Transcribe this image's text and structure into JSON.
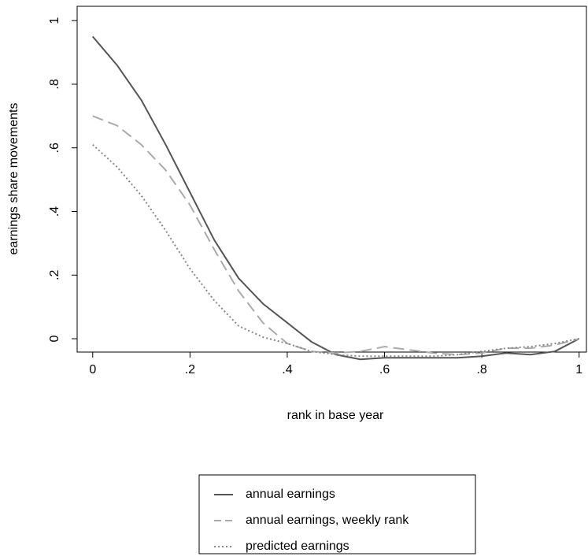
{
  "chart_data": {
    "type": "line",
    "xlabel": "rank in base year",
    "ylabel": "earnings share movements",
    "x": [
      0,
      0.05,
      0.1,
      0.15,
      0.2,
      0.25,
      0.3,
      0.35,
      0.4,
      0.45,
      0.5,
      0.55,
      0.6,
      0.65,
      0.7,
      0.75,
      0.8,
      0.85,
      0.9,
      0.95,
      1
    ],
    "series": [
      {
        "name": "annual earnings",
        "color": "#555555",
        "dash": "solid",
        "values": [
          0.95,
          0.86,
          0.75,
          0.61,
          0.46,
          0.31,
          0.19,
          0.11,
          0.05,
          -0.01,
          -0.05,
          -0.065,
          -0.06,
          -0.06,
          -0.06,
          -0.06,
          -0.055,
          -0.045,
          -0.05,
          -0.04,
          0
        ]
      },
      {
        "name": "annual earnings, weekly rank",
        "color": "#aaaaaa",
        "dash": "dash",
        "values": [
          0.7,
          0.67,
          0.61,
          0.53,
          0.42,
          0.28,
          0.15,
          0.05,
          -0.015,
          -0.04,
          -0.045,
          -0.04,
          -0.025,
          -0.035,
          -0.045,
          -0.05,
          -0.045,
          -0.03,
          -0.03,
          -0.02,
          0
        ]
      },
      {
        "name": "predicted earnings",
        "color": "#888888",
        "dash": "dot",
        "values": [
          0.61,
          0.54,
          0.45,
          0.34,
          0.22,
          0.12,
          0.04,
          0.005,
          -0.015,
          -0.04,
          -0.05,
          -0.055,
          -0.055,
          -0.055,
          -0.055,
          -0.05,
          -0.04,
          -0.03,
          -0.025,
          -0.015,
          0
        ]
      }
    ],
    "xlim": [
      -0.032,
      1.015
    ],
    "ylim": [
      -0.042,
      1.045
    ],
    "xticks": [
      0,
      {
        "value": 0.2,
        "label": ".2"
      },
      {
        "value": 0.4,
        "label": ".4"
      },
      {
        "value": 0.6,
        "label": ".6"
      },
      {
        "value": 0.8,
        "label": ".8"
      },
      1
    ],
    "yticks": [
      0,
      {
        "value": 0.2,
        "label": ".2"
      },
      {
        "value": 0.4,
        "label": ".4"
      },
      {
        "value": 0.6,
        "label": ".6"
      },
      {
        "value": 0.8,
        "label": ".8"
      },
      1
    ],
    "legend": "bottom"
  }
}
